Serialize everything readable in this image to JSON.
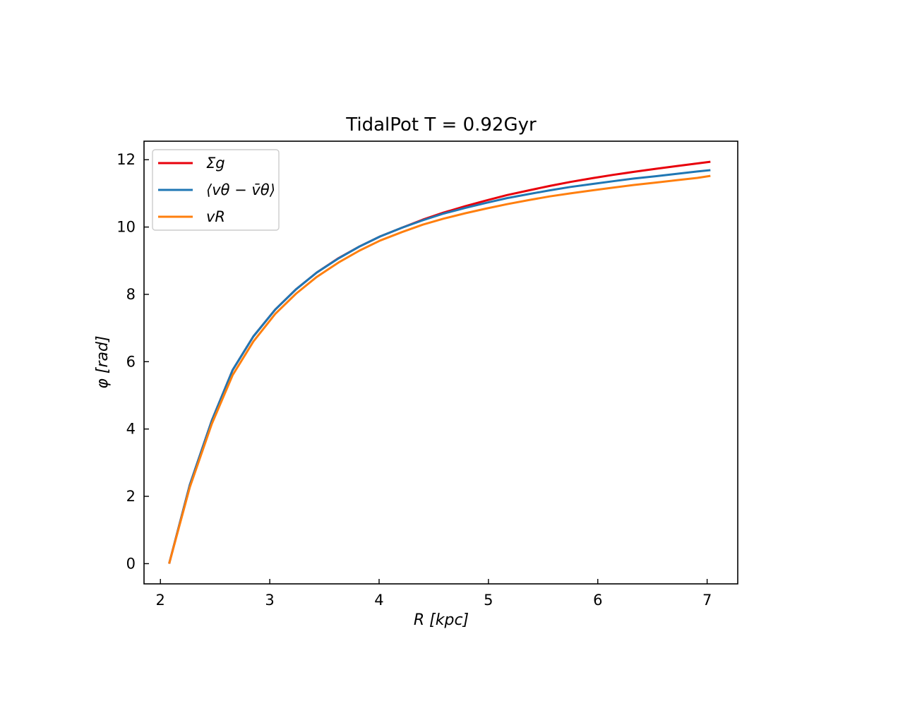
{
  "chart_data": {
    "type": "line",
    "title": "TidalPot T = 0.92Gyr",
    "xlabel": "R [kpc]",
    "ylabel": "φ [rad]",
    "xlim": [
      1.85,
      7.28
    ],
    "ylim": [
      -0.6,
      12.55
    ],
    "xticks": [
      2,
      3,
      4,
      5,
      6,
      7
    ],
    "yticks": [
      0,
      2,
      4,
      6,
      8,
      10,
      12
    ],
    "grid": false,
    "legend_position": "top-left",
    "series": [
      {
        "name": "Σg",
        "color": "#e8000b",
        "x": [
          2.08,
          2.27,
          2.47,
          2.66,
          2.85,
          3.05,
          3.24,
          3.43,
          3.63,
          3.82,
          4.01,
          4.21,
          4.4,
          4.59,
          4.79,
          4.98,
          5.17,
          5.37,
          5.56,
          5.75,
          5.95,
          6.14,
          6.33,
          6.53,
          6.72,
          6.91,
          7.03
        ],
        "values": [
          0.0,
          2.35,
          4.25,
          5.75,
          6.75,
          7.55,
          8.15,
          8.65,
          9.08,
          9.42,
          9.72,
          9.98,
          10.22,
          10.43,
          10.62,
          10.79,
          10.95,
          11.09,
          11.22,
          11.34,
          11.45,
          11.55,
          11.64,
          11.73,
          11.81,
          11.89,
          11.94
        ]
      },
      {
        "name": "⟨vθ − v̄θ⟩",
        "color": "#1f77b4",
        "x": [
          2.08,
          2.27,
          2.47,
          2.66,
          2.85,
          3.05,
          3.24,
          3.43,
          3.63,
          3.82,
          4.01,
          4.21,
          4.4,
          4.59,
          4.79,
          4.98,
          5.17,
          5.37,
          5.56,
          5.75,
          5.95,
          6.14,
          6.33,
          6.53,
          6.72,
          6.91,
          7.03
        ],
        "values": [
          0.0,
          2.35,
          4.25,
          5.75,
          6.75,
          7.55,
          8.15,
          8.65,
          9.07,
          9.42,
          9.72,
          9.98,
          10.2,
          10.4,
          10.57,
          10.72,
          10.86,
          10.98,
          11.09,
          11.19,
          11.28,
          11.36,
          11.44,
          11.51,
          11.58,
          11.65,
          11.69
        ]
      },
      {
        "name": "vR",
        "color": "#ff7f0e",
        "x": [
          2.08,
          2.27,
          2.47,
          2.66,
          2.85,
          3.05,
          3.24,
          3.43,
          3.63,
          3.82,
          4.01,
          4.21,
          4.4,
          4.59,
          4.79,
          4.98,
          5.17,
          5.37,
          5.56,
          5.75,
          5.95,
          6.14,
          6.33,
          6.53,
          6.72,
          6.91,
          7.03
        ],
        "values": [
          0.0,
          2.28,
          4.15,
          5.6,
          6.6,
          7.42,
          8.02,
          8.52,
          8.95,
          9.3,
          9.6,
          9.85,
          10.07,
          10.25,
          10.41,
          10.55,
          10.68,
          10.8,
          10.91,
          11.0,
          11.09,
          11.17,
          11.25,
          11.32,
          11.39,
          11.46,
          11.52
        ]
      }
    ]
  }
}
